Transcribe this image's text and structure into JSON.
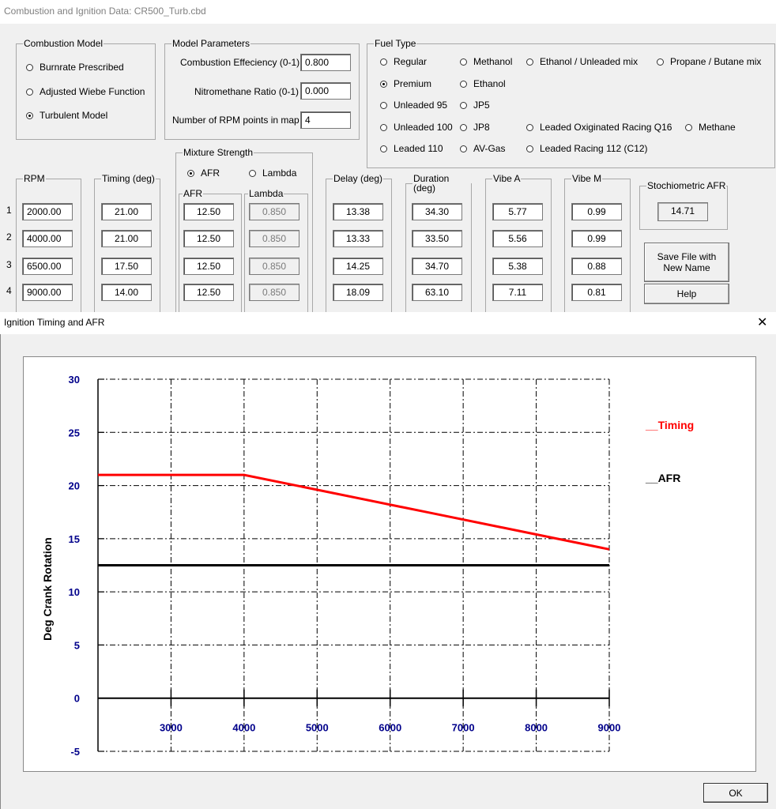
{
  "window": {
    "title": "Combustion and Ignition Data: CR500_Turb.cbd"
  },
  "combustion_model": {
    "legend": "Combustion Model",
    "options": [
      {
        "label": "Burnrate Prescribed",
        "selected": false
      },
      {
        "label": "Adjusted Wiebe Function",
        "selected": false
      },
      {
        "label": "Turbulent Model",
        "selected": true
      }
    ]
  },
  "model_parameters": {
    "legend": "Model Parameters",
    "combustion_efficiency_label": "Combustion Effeciency (0-1)",
    "combustion_efficiency": "0.800",
    "nitromethane_label": "Nitromethane Ratio (0-1)",
    "nitromethane": "0.000",
    "rpm_points_label": "Number of RPM points in map",
    "rpm_points": "4"
  },
  "fuel_type": {
    "legend": "Fuel Type",
    "options": [
      {
        "label": "Regular",
        "selected": false
      },
      {
        "label": "Methanol",
        "selected": false
      },
      {
        "label": "Ethanol / Unleaded mix",
        "selected": false
      },
      {
        "label": "Propane / Butane mix",
        "selected": false
      },
      {
        "label": "Premium",
        "selected": true
      },
      {
        "label": "Ethanol",
        "selected": false
      },
      {
        "label": "Unleaded 95",
        "selected": false
      },
      {
        "label": "JP5",
        "selected": false
      },
      {
        "label": "Unleaded 100",
        "selected": false
      },
      {
        "label": "JP8",
        "selected": false
      },
      {
        "label": "Leaded Oxiginated Racing Q16",
        "selected": false
      },
      {
        "label": "Methane",
        "selected": false
      },
      {
        "label": "Leaded 110",
        "selected": false
      },
      {
        "label": "AV-Gas",
        "selected": false
      },
      {
        "label": "Leaded Racing 112 (C12)",
        "selected": false
      }
    ]
  },
  "mixture_strength": {
    "legend": "Mixture Strength",
    "options": [
      {
        "label": "AFR",
        "selected": true
      },
      {
        "label": "Lambda",
        "selected": false
      }
    ]
  },
  "table": {
    "rpm_label": "RPM",
    "timing_label": "Timing (deg)",
    "afr_label": "AFR",
    "lambda_label": "Lambda",
    "delay_label": "Delay (deg)",
    "duration_label": "Duration (deg)",
    "vibe_a_label": "Vibe A",
    "vibe_m_label": "Vibe M",
    "rows": [
      {
        "idx": "1",
        "rpm": "2000.00",
        "timing": "21.00",
        "afr": "12.50",
        "lambda": "0.850",
        "delay": "13.38",
        "duration": "34.30",
        "vibe_a": "5.77",
        "vibe_m": "0.99"
      },
      {
        "idx": "2",
        "rpm": "4000.00",
        "timing": "21.00",
        "afr": "12.50",
        "lambda": "0.850",
        "delay": "13.33",
        "duration": "33.50",
        "vibe_a": "5.56",
        "vibe_m": "0.99"
      },
      {
        "idx": "3",
        "rpm": "6500.00",
        "timing": "17.50",
        "afr": "12.50",
        "lambda": "0.850",
        "delay": "14.25",
        "duration": "34.70",
        "vibe_a": "5.38",
        "vibe_m": "0.88"
      },
      {
        "idx": "4",
        "rpm": "9000.00",
        "timing": "14.00",
        "afr": "12.50",
        "lambda": "0.850",
        "delay": "18.09",
        "duration": "63.10",
        "vibe_a": "7.11",
        "vibe_m": "0.81"
      }
    ]
  },
  "stoich": {
    "legend": "Stochiometric AFR",
    "value": "14.71"
  },
  "buttons": {
    "save": "Save File with New Name",
    "help": "Help",
    "ok": "OK"
  },
  "dialog": {
    "title": "Ignition Timing and AFR",
    "close": "✕"
  },
  "colors": {
    "timing": "#ff0000",
    "afr": "#000000",
    "tick_labels": "#00008b"
  },
  "chart_data": {
    "type": "line",
    "ylabel": "Deg Crank Rotation",
    "xlabel": "",
    "xlim": [
      2000,
      9000
    ],
    "ylim": [
      -5,
      30
    ],
    "x_ticks": [
      3000,
      4000,
      5000,
      6000,
      7000,
      8000,
      9000
    ],
    "y_ticks": [
      30,
      25,
      20,
      15,
      10,
      5,
      0,
      -5
    ],
    "grid": true,
    "legend_position": "right",
    "series": [
      {
        "name": "__Timing",
        "color": "#ff0000",
        "x": [
          2000,
          4000,
          6500,
          9000
        ],
        "y": [
          21.0,
          21.0,
          17.5,
          14.0
        ]
      },
      {
        "name": "__AFR",
        "color": "#000000",
        "x": [
          2000,
          4000,
          6500,
          9000
        ],
        "y": [
          12.5,
          12.5,
          12.5,
          12.5
        ]
      }
    ]
  }
}
